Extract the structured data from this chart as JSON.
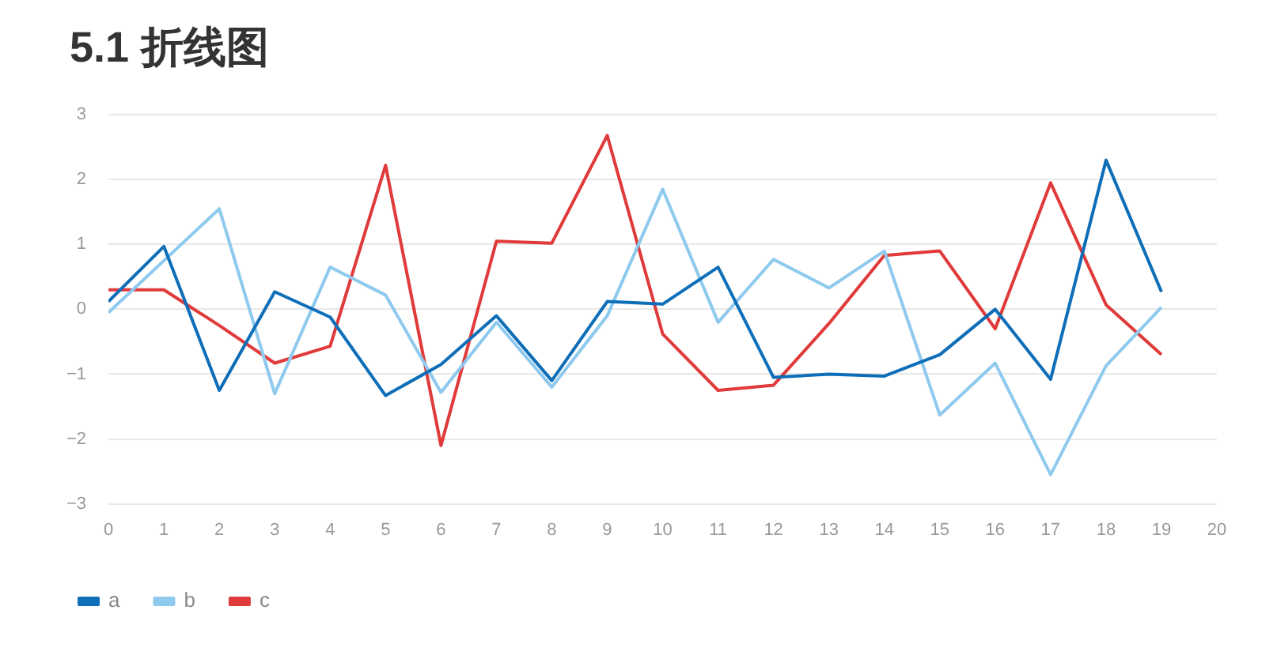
{
  "chart_data": {
    "type": "line",
    "title": "5.1 折线图",
    "x": [
      0,
      1,
      2,
      3,
      4,
      5,
      6,
      7,
      8,
      9,
      10,
      11,
      12,
      13,
      14,
      15,
      16,
      17,
      18,
      19
    ],
    "series": [
      {
        "name": "a",
        "color": "#0e6eb8",
        "values": [
          0.12,
          0.97,
          -1.25,
          0.27,
          -0.12,
          -1.33,
          -0.85,
          -0.1,
          -1.1,
          0.12,
          0.08,
          0.65,
          -1.05,
          -1.0,
          -1.03,
          -0.7,
          0.0,
          -1.08,
          2.3,
          0.27
        ]
      },
      {
        "name": "b",
        "color": "#8ec9ee",
        "values": [
          -0.05,
          0.75,
          1.55,
          -1.3,
          0.65,
          0.22,
          -1.28,
          -0.2,
          -1.2,
          -0.1,
          1.85,
          -0.2,
          0.77,
          0.33,
          0.9,
          -1.63,
          -0.83,
          -2.55,
          -0.87,
          0.03
        ]
      },
      {
        "name": "c",
        "color": "#e03a3a",
        "values": [
          0.3,
          0.3,
          -0.25,
          -0.83,
          -0.57,
          2.22,
          -2.1,
          1.05,
          1.02,
          2.68,
          -0.38,
          -1.25,
          -1.17,
          -0.22,
          0.83,
          0.9,
          -0.3,
          1.95,
          0.07,
          -0.7
        ]
      }
    ],
    "xlim": [
      0,
      20
    ],
    "xticks": [
      0,
      1,
      2,
      3,
      4,
      5,
      6,
      7,
      8,
      9,
      10,
      11,
      12,
      13,
      14,
      15,
      16,
      17,
      18,
      19,
      20
    ],
    "ylim": [
      -3,
      3
    ],
    "yticks": [
      -3,
      -2,
      -1,
      0,
      1,
      2,
      3
    ],
    "grid": "y",
    "legend": "bottom left",
    "marker": "none",
    "line_style": "solid"
  }
}
